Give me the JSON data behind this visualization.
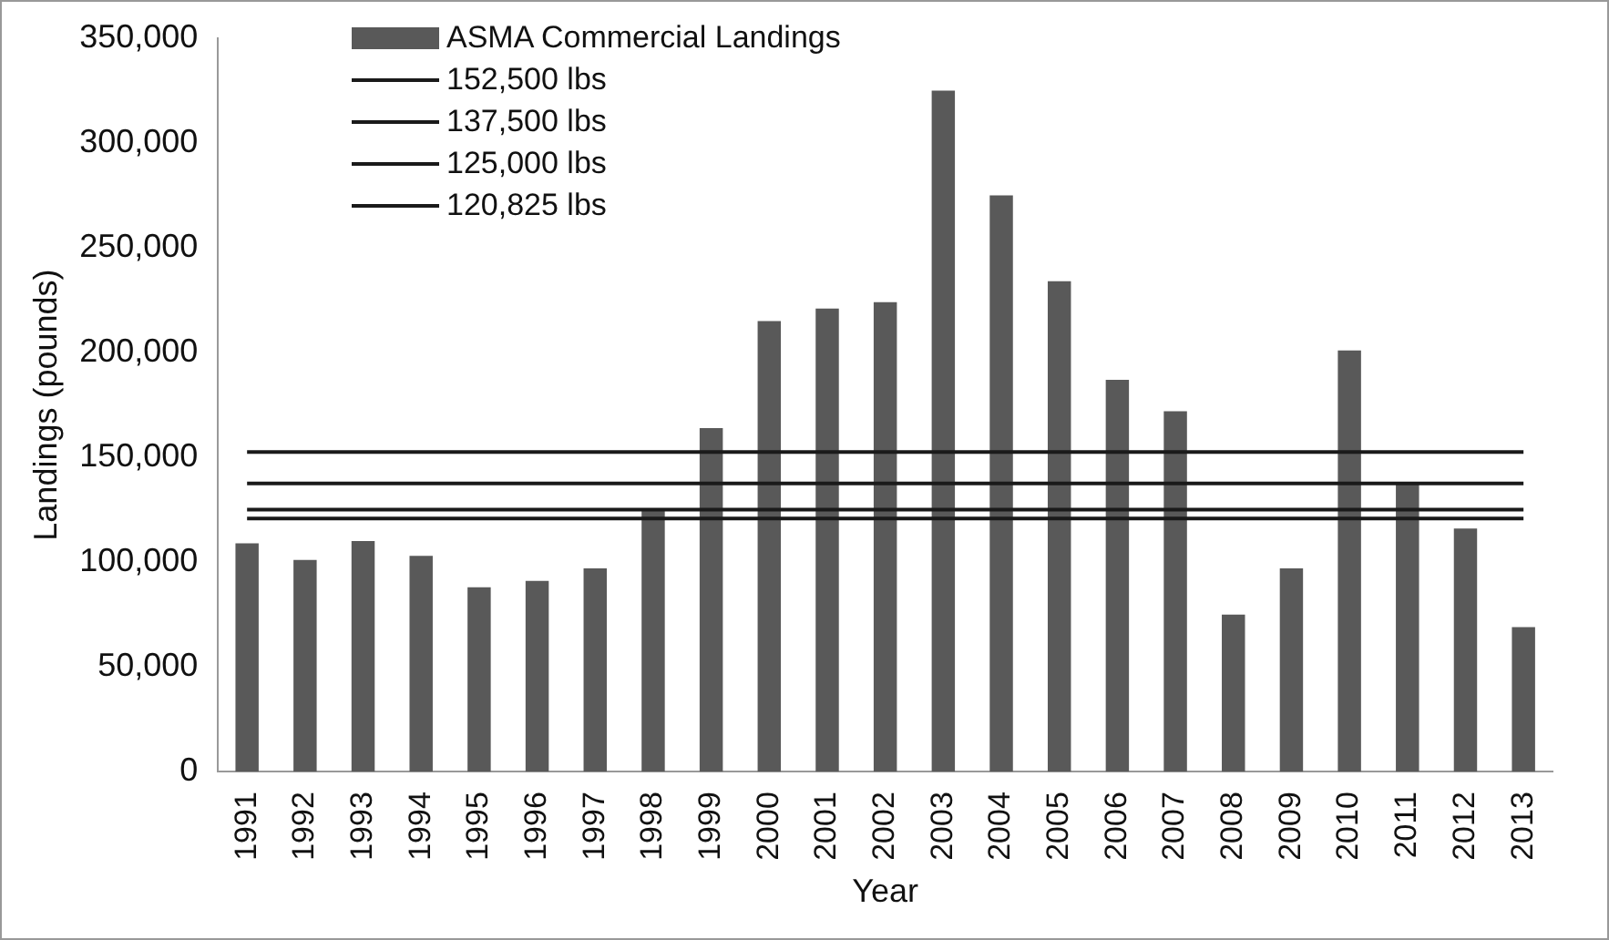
{
  "chart_data": {
    "type": "bar",
    "xlabel": "Year",
    "ylabel": "Landings (pounds)",
    "categories": [
      "1991",
      "1992",
      "1993",
      "1994",
      "1995",
      "1996",
      "1997",
      "1998",
      "1999",
      "2000",
      "2001",
      "2002",
      "2003",
      "2004",
      "2005",
      "2006",
      "2007",
      "2008",
      "2009",
      "2010",
      "2011",
      "2012",
      "2013"
    ],
    "series": [
      {
        "name": "ASMA Commercial Landings",
        "color": "#595959",
        "values": [
          109000,
          101000,
          110000,
          103000,
          88000,
          91000,
          97000,
          125000,
          164000,
          215000,
          221000,
          224000,
          325000,
          275000,
          234000,
          187000,
          172000,
          75000,
          97000,
          201000,
          137000,
          116000,
          69000
        ]
      },
      {
        "name": "152,500 lbs",
        "type": "line",
        "color": "#1a1a1a",
        "values": [
          152500,
          152500,
          152500,
          152500,
          152500,
          152500,
          152500,
          152500,
          152500,
          152500,
          152500,
          152500,
          152500,
          152500,
          152500,
          152500,
          152500,
          152500,
          152500,
          152500,
          152500,
          152500,
          152500
        ]
      },
      {
        "name": "137,500 lbs",
        "type": "line",
        "color": "#1a1a1a",
        "values": [
          137500,
          137500,
          137500,
          137500,
          137500,
          137500,
          137500,
          137500,
          137500,
          137500,
          137500,
          137500,
          137500,
          137500,
          137500,
          137500,
          137500,
          137500,
          137500,
          137500,
          137500,
          137500,
          137500
        ]
      },
      {
        "name": "125,000 lbs",
        "type": "line",
        "color": "#1a1a1a",
        "values": [
          125000,
          125000,
          125000,
          125000,
          125000,
          125000,
          125000,
          125000,
          125000,
          125000,
          125000,
          125000,
          125000,
          125000,
          125000,
          125000,
          125000,
          125000,
          125000,
          125000,
          125000,
          125000,
          125000
        ]
      },
      {
        "name": "120,825 lbs",
        "type": "line",
        "color": "#1a1a1a",
        "values": [
          120825,
          120825,
          120825,
          120825,
          120825,
          120825,
          120825,
          120825,
          120825,
          120825,
          120825,
          120825,
          120825,
          120825,
          120825,
          120825,
          120825,
          120825,
          120825,
          120825,
          120825,
          120825,
          120825
        ]
      }
    ],
    "ylim": [
      0,
      350000
    ],
    "yticks": [
      0,
      {
        "value": 50000,
        "label": "50,000"
      },
      {
        "value": 100000,
        "label": "100,000"
      },
      {
        "value": 150000,
        "label": "150,000"
      },
      {
        "value": 200000,
        "label": "200,000"
      },
      {
        "value": 250000,
        "label": "250,000"
      },
      {
        "value": 300000,
        "label": "300,000"
      },
      {
        "value": 350000,
        "label": "350,000"
      }
    ],
    "grid": false,
    "legend": "top left",
    "marker": "none",
    "line_style": "solid"
  }
}
